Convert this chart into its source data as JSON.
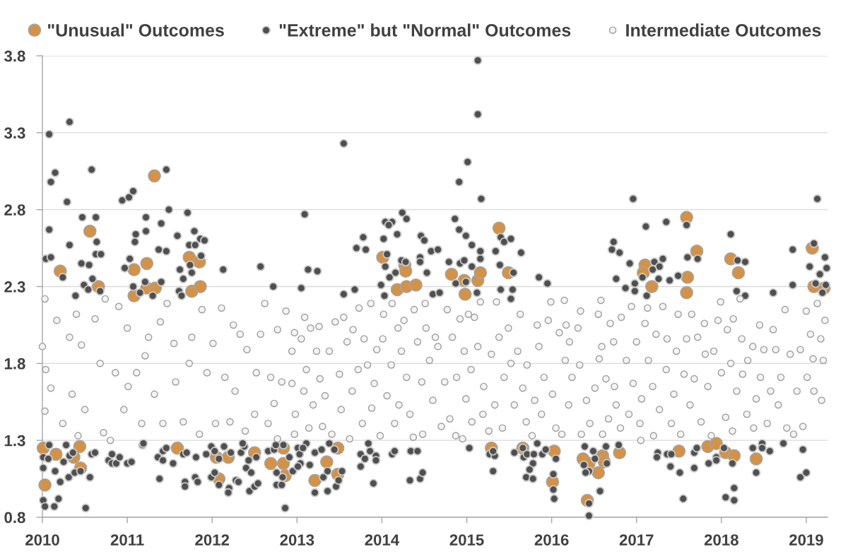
{
  "chart_data": {
    "type": "scatter",
    "marker": "circle",
    "grid": "y",
    "legend": "top",
    "xlim": [
      2010,
      2019.25
    ],
    "xticks": [
      2010,
      2011,
      2012,
      2013,
      2014,
      2015,
      2016,
      2017,
      2018,
      2019
    ],
    "ylim": [
      0.8,
      3.8
    ],
    "yticks": [
      0.8,
      1.3,
      1.8,
      2.3,
      2.8,
      3.3,
      3.8
    ],
    "series": [
      {
        "name": "\"Unusual\" Outcomes",
        "color": "#d39249",
        "x": [
          2010.21,
          2010.56,
          2011.32,
          2011.08,
          2011.23,
          2011.73,
          2011.85,
          2011.76,
          2011.86,
          2010.66,
          2011.23,
          2011.33,
          2011.08,
          2010.01,
          2010.16,
          2010.37,
          2010.44,
          2010.45,
          2010.03,
          2011.59,
          2012.05,
          2012.19,
          2012.08,
          2012.5,
          2012.69,
          2012.84,
          2012.84,
          2012.86,
          2013.21,
          2013.35,
          2013.48,
          2013.48,
          2014.18,
          2014.29,
          2014.4,
          2014.98,
          2015.29,
          2015.66,
          2016.03,
          2016.01,
          2015.38,
          2014.01,
          2014.27,
          2014.28,
          2014.82,
          2014.97,
          2015.13,
          2015.16,
          2015.49,
          2017.59,
          2017.71,
          2017.1,
          2017.08,
          2017.18,
          2017.6,
          2017.59,
          2018.11,
          2018.2,
          2019.07,
          2019.09,
          2019.21,
          2016.37,
          2016.44,
          2016.6,
          2016.62,
          2016.55,
          2016.42,
          2016.8,
          2017.5,
          2017.84,
          2017.94,
          2018.05,
          2018.15,
          2018.41
        ],
        "values": [
          2.4,
          2.66,
          3.02,
          2.41,
          2.45,
          2.49,
          2.46,
          2.27,
          2.3,
          2.3,
          2.29,
          2.29,
          2.24,
          1.25,
          1.21,
          1.19,
          1.26,
          1.12,
          1.01,
          1.25,
          1.19,
          1.19,
          1.05,
          1.22,
          1.15,
          1.25,
          1.15,
          1.07,
          1.04,
          1.16,
          1.25,
          1.08,
          2.28,
          2.3,
          2.31,
          2.25,
          1.25,
          1.25,
          1.23,
          1.03,
          2.68,
          2.49,
          2.44,
          2.4,
          2.38,
          2.34,
          2.34,
          2.39,
          2.39,
          2.75,
          2.53,
          2.44,
          2.39,
          2.3,
          2.36,
          2.26,
          2.48,
          2.39,
          2.55,
          2.3,
          2.29,
          1.18,
          1.15,
          1.2,
          1.16,
          1.09,
          0.91,
          1.22,
          1.23,
          1.26,
          1.28,
          1.22,
          1.2,
          1.18
        ]
      },
      {
        "name": "\"Extreme\" but \"Normal\" Outcomes",
        "color": "#4f4f4f",
        "x": [
          2010.08,
          2010.32,
          2010.15,
          2010.1,
          2010.58,
          2010.29,
          2010.08,
          2010.32,
          2010.04,
          2010.1,
          2010.47,
          2010.63,
          2010.64,
          2010.63,
          2010.69,
          2010.46,
          2010.55,
          2010.24,
          2010.49,
          2010.59,
          2010.94,
          2011.02,
          2011.07,
          2011.46,
          2011.49,
          2011.22,
          2011.4,
          2011.22,
          2011.1,
          2011.09,
          2011.37,
          2011.46,
          2011.03,
          2010.97,
          2011.71,
          2011.79,
          2011.59,
          2011.86,
          2011.91,
          2011.73,
          2011.8,
          2011.62,
          2011.66,
          2011.74,
          2011.76,
          2011.87,
          2012.13,
          2012.57,
          2012.72,
          2011.4,
          2011.21,
          2010.39,
          2011.07,
          2011.15,
          2011.3,
          2011.61,
          2011.64,
          2010.54,
          2010.68,
          2015.13,
          2015.13,
          2013.55,
          2015.01,
          2014.91,
          2015.17,
          2013.09,
          2014.24,
          2014.29,
          2014.04,
          2014.12,
          2014.08,
          2014.86,
          2014.91,
          2014.99,
          2015.06,
          2013.78,
          2013.7,
          2013.81,
          2014.02,
          2014.18,
          2014.46,
          2014.5,
          2014.58,
          2014.66,
          2015.16,
          2015.16,
          2015.34,
          2015.4,
          2015.44,
          2015.52,
          2015.64,
          2013.13,
          2013.24,
          2013.05,
          2014.06,
          2014.04,
          2014.16,
          2014.09,
          2014.23,
          2014.28,
          2014.45,
          2014.45,
          2014.53,
          2014.79,
          2014.92,
          2014.97,
          2014.87,
          2014.99,
          2015.06,
          2015.39,
          2015.55,
          2015.85,
          2015.95,
          2013.99,
          2015.4,
          2015.54,
          2014.6,
          2014.68,
          2013.55,
          2013.68,
          2014.03,
          2015.12,
          2015.52,
          2016.96,
          2019.13,
          2017.11,
          2017.35,
          2017.59,
          2016.73,
          2016.71,
          2016.8,
          2016.92,
          2018.11,
          2017.6,
          2017.72,
          2018.19,
          2018.28,
          2018.84,
          2019.09,
          2019.22,
          2019.24,
          2019.04,
          2019.16,
          2017.31,
          2017.21,
          2017.27,
          2017.19,
          2017.26,
          2017.07,
          2016.76,
          2017.39,
          2017.49,
          2016.98,
          2016.87,
          2016.98,
          2018.18,
          2018.61,
          2018.84,
          2019.11,
          2019.23,
          2017.12,
          2018.28,
          2019.19,
          2010.08,
          2010.01,
          2010.07,
          2010.01,
          2010.01,
          2010.03,
          2010.14,
          2010.19,
          2010.15,
          2010.21,
          2010.25,
          2010.28,
          2010.31,
          2010.32,
          2010.36,
          2010.38,
          2010.45,
          2010.51,
          2010.56,
          2010.58,
          2010.62,
          2010.78,
          2010.82,
          2010.82,
          2010.87,
          2010.91,
          2011.0,
          2011.05,
          2011.18,
          2011.19,
          2011.36,
          2011.42,
          2011.46,
          2011.42,
          2011.38,
          2011.54,
          2011.66,
          2011.7,
          2011.68,
          2011.68,
          2011.8,
          2011.83,
          2011.81,
          2011.93,
          2011.99,
          2012.03,
          2012.08,
          2012.14,
          2012.22,
          2011.99,
          2012.03,
          2012.08,
          2012.2,
          2012.19,
          2012.28,
          2012.31,
          2012.34,
          2012.38,
          2012.36,
          2012.4,
          2012.46,
          2012.43,
          2012.44,
          2012.5,
          2012.54,
          2012.52,
          2012.66,
          2012.73,
          2012.75,
          2012.76,
          2012.76,
          2012.84,
          2012.86,
          2012.82,
          2012.83,
          2012.91,
          2012.95,
          2013.01,
          2013.03,
          2013.11,
          2013.07,
          2013.04,
          2013.01,
          2013.15,
          2013.21,
          2013.21,
          2013.29,
          2013.31,
          2013.36,
          2013.36,
          2013.38,
          2013.44,
          2013.46,
          2013.49,
          2013.53,
          2013.75,
          2013.8,
          2013.75,
          2013.84,
          2013.86,
          2013.93,
          2013.93,
          2013.9,
          2014.12,
          2014.15,
          2014.34,
          2014.42,
          2014.33,
          2014.45,
          2014.48,
          2015.03,
          2015.27,
          2015.33,
          2015.31,
          2015.31,
          2015.56,
          2015.66,
          2015.67,
          2015.71,
          2015.78,
          2015.74,
          2015.7,
          2015.78,
          2015.79,
          2015.83,
          2015.89,
          2015.93,
          2016.05,
          2016.02,
          2016.02,
          2016.03,
          2016.39,
          2016.49,
          2016.51,
          2016.38,
          2016.44,
          2016.4,
          2016.64,
          2016.65,
          2016.57,
          2016.44,
          2016.44,
          2016.79,
          2017.25,
          2017.24,
          2017.36,
          2017.41,
          2017.4,
          2017.51,
          2017.55,
          2017.68,
          2017.71,
          2017.68,
          2017.85,
          2017.94,
          2017.94,
          2018.03,
          2018.13,
          2018.05,
          2018.15,
          2018.15,
          2018.37,
          2018.41,
          2018.48,
          2018.48,
          2018.57,
          2018.73,
          2018.96,
          2018.93,
          2019.0
        ],
        "values": [
          3.29,
          3.37,
          3.04,
          2.98,
          3.06,
          2.85,
          2.67,
          2.57,
          2.48,
          2.49,
          2.75,
          2.75,
          2.59,
          2.51,
          2.51,
          2.45,
          2.44,
          2.36,
          2.31,
          2.35,
          2.86,
          2.88,
          2.92,
          3.06,
          2.8,
          2.75,
          2.71,
          2.66,
          2.64,
          2.59,
          2.54,
          2.53,
          2.48,
          2.42,
          2.78,
          2.66,
          2.63,
          2.61,
          2.6,
          2.57,
          2.57,
          2.41,
          2.35,
          2.44,
          2.39,
          2.5,
          2.41,
          2.43,
          2.3,
          2.33,
          2.33,
          2.24,
          2.3,
          2.26,
          2.24,
          2.27,
          2.24,
          2.28,
          2.27,
          3.77,
          3.42,
          3.23,
          3.11,
          2.98,
          2.87,
          2.77,
          2.78,
          2.74,
          2.72,
          2.72,
          2.7,
          2.74,
          2.67,
          2.63,
          2.57,
          2.62,
          2.55,
          2.54,
          2.61,
          2.64,
          2.63,
          2.6,
          2.53,
          2.54,
          2.53,
          2.48,
          2.53,
          2.62,
          2.59,
          2.61,
          2.52,
          2.41,
          2.4,
          2.29,
          2.51,
          2.43,
          2.39,
          2.36,
          2.47,
          2.46,
          2.49,
          2.46,
          2.39,
          2.46,
          2.45,
          2.47,
          2.32,
          2.33,
          2.43,
          2.44,
          2.39,
          2.36,
          2.32,
          2.31,
          2.28,
          2.28,
          2.25,
          2.26,
          2.25,
          2.28,
          2.24,
          2.26,
          2.22,
          2.87,
          2.87,
          2.69,
          2.72,
          2.7,
          2.59,
          2.54,
          2.52,
          2.45,
          2.64,
          2.49,
          2.48,
          2.47,
          2.46,
          2.54,
          2.58,
          2.49,
          2.42,
          2.43,
          2.38,
          2.48,
          2.46,
          2.43,
          2.41,
          2.35,
          2.36,
          2.35,
          2.34,
          2.37,
          2.32,
          2.29,
          2.27,
          2.27,
          2.26,
          2.31,
          2.32,
          2.31,
          2.24,
          2.24,
          2.26,
          1.27,
          1.19,
          1.18,
          1.12,
          0.91,
          0.87,
          0.87,
          0.92,
          1.1,
          1.03,
          1.16,
          1.27,
          1.06,
          1.2,
          1.22,
          1.09,
          1.1,
          0.86,
          1.06,
          1.21,
          1.22,
          1.17,
          1.21,
          1.15,
          1.15,
          1.19,
          1.15,
          1.16,
          1.27,
          1.28,
          1.19,
          1.23,
          1.25,
          1.17,
          1.05,
          1.15,
          1.21,
          1.22,
          1.03,
          1.0,
          1.06,
          1.03,
          1.19,
          1.21,
          1.26,
          1.23,
          1.18,
          1.26,
          1.22,
          1.06,
          1.09,
          1.01,
          0.99,
          0.96,
          1.04,
          1.03,
          1.22,
          1.26,
          1.28,
          1.12,
          1.09,
          1.17,
          0.97,
          1.0,
          1.02,
          1.19,
          1.23,
          1.24,
          1.27,
          1.09,
          1.01,
          1.27,
          0.86,
          1.01,
          1.06,
          1.19,
          1.1,
          1.25,
          1.21,
          1.28,
          1.25,
          1.15,
          1.13,
          1.14,
          1.22,
          0.96,
          1.24,
          1.06,
          0.97,
          1.1,
          1.28,
          1.24,
          1.0,
          1.04,
          1.1,
          1.21,
          1.18,
          1.13,
          1.28,
          1.23,
          1.2,
          1.17,
          1.02,
          1.21,
          1.23,
          1.23,
          1.23,
          1.04,
          1.05,
          1.09,
          1.25,
          1.21,
          1.2,
          1.23,
          1.1,
          1.22,
          1.25,
          1.19,
          1.21,
          1.15,
          1.11,
          1.06,
          1.05,
          1.21,
          1.28,
          1.21,
          1.24,
          1.18,
          1.08,
          0.98,
          0.92,
          1.26,
          1.23,
          1.18,
          1.14,
          1.1,
          1.09,
          1.26,
          1.15,
          0.97,
          0.89,
          0.81,
          1.27,
          1.22,
          1.19,
          1.21,
          1.21,
          1.13,
          1.09,
          0.92,
          1.22,
          1.25,
          1.12,
          1.15,
          1.19,
          1.17,
          1.25,
          1.15,
          0.93,
          0.99,
          0.91,
          1.25,
          1.09,
          1.28,
          1.25,
          1.23,
          1.28,
          1.24,
          1.06,
          1.09
        ]
      },
      {
        "name": "Intermediate Outcomes",
        "color": "#f4f4f4",
        "x": [
          2010.0,
          2010.03,
          2010.04,
          2010.03,
          2010.1,
          2010.17,
          2010.24,
          2010.32,
          2010.35,
          2010.4,
          2010.42,
          2010.46,
          2010.5,
          2010.62,
          2010.68,
          2010.72,
          2010.74,
          2010.8,
          2010.86,
          2010.9,
          2010.96,
          2011.0,
          2011.01,
          2011.11,
          2011.17,
          2011.21,
          2011.25,
          2011.32,
          2011.39,
          2011.42,
          2011.47,
          2011.55,
          2011.57,
          2011.66,
          2011.73,
          2011.76,
          2011.85,
          2011.88,
          2011.94,
          2012.01,
          2012.04,
          2012.11,
          2012.15,
          2012.21,
          2012.25,
          2012.27,
          2012.33,
          2012.39,
          2012.41,
          2012.5,
          2012.52,
          2012.57,
          2012.62,
          2012.66,
          2012.69,
          2012.73,
          2012.77,
          2012.77,
          2012.82,
          2012.87,
          2012.97,
          2012.94,
          2012.94,
          2012.98,
          2012.97,
          2013.05,
          2013.09,
          2013.11,
          2013.08,
          2013.14,
          2013.16,
          2013.19,
          2013.23,
          2013.26,
          2013.27,
          2013.3,
          2013.33,
          2013.38,
          2013.41,
          2013.45,
          2013.5,
          2013.52,
          2013.55,
          2013.59,
          2013.62,
          2013.65,
          2013.66,
          2013.72,
          2013.73,
          2013.77,
          2013.79,
          2013.83,
          2013.87,
          2013.88,
          2013.91,
          2013.94,
          2013.98,
          2014.01,
          2014.02,
          2014.06,
          2014.11,
          2014.12,
          2014.15,
          2014.19,
          2014.2,
          2014.23,
          2014.26,
          2014.29,
          2014.33,
          2014.37,
          2014.38,
          2014.42,
          2014.47,
          2014.48,
          2014.51,
          2014.52,
          2014.56,
          2014.6,
          2014.63,
          2014.66,
          2014.7,
          2014.74,
          2014.77,
          2014.8,
          2014.83,
          2014.87,
          2014.88,
          2014.92,
          2014.95,
          2014.97,
          2014.99,
          2015.02,
          2015.05,
          2015.06,
          2015.09,
          2015.13,
          2015.16,
          2015.19,
          2015.2,
          2015.26,
          2015.29,
          2015.33,
          2015.35,
          2015.38,
          2015.42,
          2015.44,
          2015.49,
          2015.52,
          2015.56,
          2015.6,
          2015.63,
          2015.66,
          2015.7,
          2015.71,
          2015.77,
          2015.8,
          2015.83,
          2015.85,
          2015.88,
          2015.91,
          2015.96,
          2015.99,
          2016.01,
          2016.05,
          2016.09,
          2016.12,
          2016.15,
          2016.16,
          2016.17,
          2016.21,
          2016.24,
          2016.2,
          2016.31,
          2016.34,
          2016.33,
          2016.35,
          2016.41,
          2016.45,
          2016.51,
          2016.55,
          2016.56,
          2016.58,
          2016.59,
          2016.6,
          2016.64,
          2016.67,
          2016.69,
          2016.73,
          2016.74,
          2016.76,
          2016.81,
          2016.82,
          2016.88,
          2016.91,
          2016.94,
          2016.96,
          2017.0,
          2017.04,
          2017.05,
          2017.06,
          2017.1,
          2017.13,
          2017.14,
          2017.19,
          2017.2,
          2017.23,
          2017.27,
          2017.31,
          2017.35,
          2017.36,
          2017.41,
          2017.44,
          2017.47,
          2017.49,
          2017.52,
          2017.56,
          2017.59,
          2017.63,
          2017.65,
          2017.68,
          2017.72,
          2017.76,
          2017.8,
          2017.81,
          2017.84,
          2017.88,
          2017.91,
          2017.96,
          2017.99,
          2018.0,
          2018.05,
          2018.07,
          2018.11,
          2018.13,
          2018.14,
          2018.18,
          2018.22,
          2018.24,
          2018.25,
          2018.3,
          2018.31,
          2018.37,
          2018.38,
          2018.41,
          2018.45,
          2018.46,
          2018.5,
          2018.54,
          2018.58,
          2018.61,
          2018.64,
          2018.67,
          2018.7,
          2018.75,
          2018.77,
          2018.81,
          2018.85,
          2018.89,
          2018.93,
          2018.96,
          2019.0,
          2019.01,
          2019.05,
          2019.08,
          2019.09,
          2019.13,
          2019.17,
          2019.18,
          2019.2,
          2019.22
        ],
        "values": [
          1.91,
          2.22,
          1.76,
          1.49,
          1.64,
          2.08,
          1.41,
          1.97,
          1.6,
          2.12,
          1.33,
          1.92,
          1.5,
          2.09,
          1.8,
          1.35,
          2.22,
          1.3,
          1.74,
          2.17,
          1.5,
          2.03,
          1.65,
          1.74,
          1.41,
          1.85,
          1.97,
          1.6,
          2.07,
          1.41,
          2.19,
          1.93,
          1.68,
          1.42,
          1.8,
          1.97,
          1.34,
          2.15,
          1.74,
          1.93,
          1.41,
          2.16,
          1.71,
          1.42,
          2.05,
          1.62,
          1.99,
          1.36,
          1.89,
          1.47,
          1.74,
          1.99,
          2.19,
          1.41,
          1.71,
          1.54,
          2.02,
          1.31,
          1.68,
          2.14,
          2.0,
          1.88,
          1.67,
          1.47,
          1.34,
          1.96,
          2.1,
          1.76,
          1.62,
          1.38,
          2.03,
          1.53,
          1.88,
          2.04,
          1.7,
          1.39,
          1.59,
          1.88,
          1.34,
          2.07,
          1.73,
          1.5,
          2.1,
          1.94,
          1.31,
          1.62,
          2.02,
          1.76,
          2.16,
          1.41,
          1.96,
          1.79,
          2.19,
          1.51,
          1.67,
          1.89,
          1.33,
          1.96,
          2.12,
          1.59,
          1.79,
          2.19,
          1.41,
          2.03,
          1.53,
          1.88,
          2.08,
          1.71,
          1.47,
          1.32,
          2.15,
          1.94,
          1.68,
          1.34,
          2.19,
          2.03,
          1.82,
          1.56,
          1.97,
          1.91,
          1.39,
          1.68,
          2.15,
          1.44,
          1.97,
          1.33,
          1.71,
          2.09,
          1.31,
          1.88,
          1.57,
          2.12,
          1.76,
          1.42,
          2.1,
          1.91,
          2.2,
          1.47,
          1.65,
          1.36,
          1.86,
          1.53,
          2.2,
          1.97,
          1.38,
          1.71,
          2.03,
          1.8,
          1.53,
          1.88,
          2.12,
          1.64,
          1.42,
          1.79,
          1.33,
          1.56,
          2.05,
          1.91,
          1.47,
          1.71,
          2.08,
          2.2,
          1.6,
          1.38,
          2.0,
          1.34,
          2.21,
          1.82,
          2.05,
          1.94,
          1.71,
          1.53,
          2.03,
          2.14,
          1.79,
          1.34,
          1.56,
          1.41,
          1.64,
          2.12,
          1.83,
          2.21,
          1.91,
          1.34,
          1.7,
          1.44,
          2.06,
          1.94,
          1.65,
          1.53,
          1.38,
          2.1,
          1.82,
          1.47,
          2.17,
          1.67,
          1.94,
          1.41,
          1.3,
          1.57,
          2.06,
          2.16,
          1.82,
          1.65,
          1.33,
          1.99,
          1.5,
          2.17,
          1.76,
          1.96,
          1.41,
          1.6,
          1.88,
          2.12,
          1.34,
          1.73,
          1.96,
          1.53,
          2.12,
          1.7,
          1.97,
          1.42,
          2.06,
          1.86,
          1.65,
          1.33,
          1.88,
          2.08,
          2.2,
          1.74,
          1.45,
          2.02,
          1.8,
          1.36,
          2.09,
          1.62,
          2.22,
          1.96,
          1.73,
          1.47,
          1.82,
          1.91,
          1.38,
          1.57,
          2.05,
          1.71,
          1.89,
          1.41,
          1.62,
          2.02,
          1.89,
          1.53,
          1.71,
          2.15,
          1.38,
          1.86,
          1.34,
          1.62,
          1.89,
          1.39,
          2.14,
          1.71,
          1.99,
          1.83,
          1.62,
          2.19,
          1.96,
          1.56,
          1.82,
          2.08
        ]
      }
    ]
  }
}
